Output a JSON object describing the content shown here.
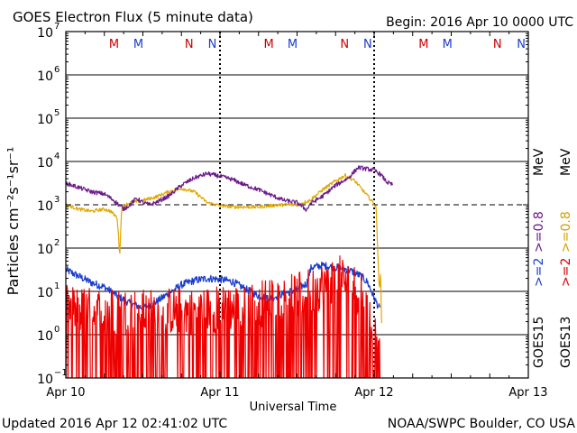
{
  "chart_data": {
    "type": "line",
    "title": "GOES Electron Flux (5 minute data)",
    "begin_label": "Begin: 2016 Apr 10 0000 UTC",
    "xlabel": "Universal Time",
    "ylabel": "Particles cm⁻²s⁻¹sr⁻¹",
    "updated": "Updated 2016 Apr 12 02:41:02 UTC",
    "credit": "NOAA/SWPC Boulder, CO USA",
    "xlim_hours": [
      0,
      72
    ],
    "ylim_log10": [
      -1,
      7
    ],
    "grid": true,
    "x_ticks": [
      {
        "hour": 0,
        "label": "Apr 10"
      },
      {
        "hour": 24,
        "label": "Apr 11"
      },
      {
        "hour": 48,
        "label": "Apr 12"
      },
      {
        "hour": 72,
        "label": "Apr 13"
      }
    ],
    "y_ticks": [
      {
        "exp": -1,
        "label": "10",
        "sup": "−1"
      },
      {
        "exp": 0,
        "label": "10",
        "sup": "0"
      },
      {
        "exp": 1,
        "label": "10",
        "sup": "1"
      },
      {
        "exp": 2,
        "label": "10",
        "sup": "2"
      },
      {
        "exp": 3,
        "label": "10",
        "sup": "3"
      },
      {
        "exp": 4,
        "label": "10",
        "sup": "4"
      },
      {
        "exp": 5,
        "label": "10",
        "sup": "5"
      },
      {
        "exp": 6,
        "label": "10",
        "sup": "6"
      },
      {
        "exp": 7,
        "label": "10",
        "sup": "7"
      }
    ],
    "alert_threshold_exp": 3,
    "midnight_hours": [
      24,
      48
    ],
    "mn_markers": [
      {
        "label": "M",
        "hour": 7.5,
        "color": "#cc0000"
      },
      {
        "label": "M",
        "hour": 11.3,
        "color": "#1a3ccc"
      },
      {
        "label": "N",
        "hour": 19.2,
        "color": "#cc0000"
      },
      {
        "label": "N",
        "hour": 22.8,
        "color": "#1a3ccc"
      },
      {
        "label": "M",
        "hour": 31.6,
        "color": "#cc0000"
      },
      {
        "label": "M",
        "hour": 35.3,
        "color": "#1a3ccc"
      },
      {
        "label": "N",
        "hour": 43.4,
        "color": "#cc0000"
      },
      {
        "label": "N",
        "hour": 47.0,
        "color": "#1a3ccc"
      },
      {
        "label": "M",
        "hour": 55.7,
        "color": "#cc0000"
      },
      {
        "label": "M",
        "hour": 59.4,
        "color": "#1a3ccc"
      },
      {
        "label": "N",
        "hour": 67.2,
        "color": "#cc0000"
      },
      {
        "label": "N",
        "hour": 70.9,
        "color": "#1a3ccc"
      }
    ],
    "legend": {
      "energy_08": [
        {
          "text": ">=0.8",
          "color": "#d4a000"
        },
        {
          "text": ">=0.8",
          "color": "#6a1a8a"
        }
      ],
      "energy_08_unit": "MeV",
      "energy_2": [
        {
          "text": ">=2",
          "color": "#dd0000"
        },
        {
          "text": ">=2",
          "color": "#1a3ccc"
        }
      ],
      "satellites": [
        "GOES13",
        "GOES15"
      ]
    },
    "series": [
      {
        "name": "GOES15 >=0.8 MeV",
        "color": "#6a1a8a",
        "noise": 0.05,
        "points": [
          [
            0,
            3.5
          ],
          [
            2,
            3.4
          ],
          [
            4,
            3.3
          ],
          [
            6,
            3.25
          ],
          [
            7.5,
            3.1
          ],
          [
            9,
            2.9
          ],
          [
            10,
            3.0
          ],
          [
            11,
            3.15
          ],
          [
            12,
            3.05
          ],
          [
            13,
            3.0
          ],
          [
            14,
            3.05
          ],
          [
            16,
            3.2
          ],
          [
            18,
            3.45
          ],
          [
            20,
            3.62
          ],
          [
            22,
            3.72
          ],
          [
            24,
            3.66
          ],
          [
            26,
            3.58
          ],
          [
            28,
            3.45
          ],
          [
            30,
            3.35
          ],
          [
            32,
            3.22
          ],
          [
            34,
            3.1
          ],
          [
            36,
            3.05
          ],
          [
            37.5,
            2.88
          ],
          [
            38,
            3.02
          ],
          [
            40,
            3.2
          ],
          [
            42,
            3.45
          ],
          [
            44,
            3.62
          ],
          [
            45.5,
            3.86
          ],
          [
            48,
            3.8
          ],
          [
            49,
            3.7
          ],
          [
            50,
            3.52
          ],
          [
            51,
            3.45
          ]
        ]
      },
      {
        "name": "GOES13 >=0.8 MeV",
        "color": "#e0a800",
        "noise": 0.04,
        "points": [
          [
            0,
            3.0
          ],
          [
            2,
            2.9
          ],
          [
            4,
            2.85
          ],
          [
            6,
            2.9
          ],
          [
            7,
            2.85
          ],
          [
            8,
            2.7
          ],
          [
            8.4,
            1.85
          ],
          [
            8.7,
            2.95
          ],
          [
            10,
            3.05
          ],
          [
            12,
            3.1
          ],
          [
            14,
            3.18
          ],
          [
            16,
            3.3
          ],
          [
            18,
            3.38
          ],
          [
            20,
            3.3
          ],
          [
            21,
            3.18
          ],
          [
            22,
            3.05
          ],
          [
            24,
            2.98
          ],
          [
            26,
            2.95
          ],
          [
            28,
            2.95
          ],
          [
            30,
            2.95
          ],
          [
            32,
            2.98
          ],
          [
            34,
            3.0
          ],
          [
            36,
            3.0
          ],
          [
            38,
            3.1
          ],
          [
            40,
            3.35
          ],
          [
            42,
            3.55
          ],
          [
            43.5,
            3.68
          ],
          [
            45,
            3.55
          ],
          [
            47,
            3.2
          ],
          [
            48,
            3.02
          ],
          [
            48.3,
            2.95
          ],
          [
            48.6,
            1.8
          ],
          [
            48.8,
            1.0
          ],
          [
            49.0,
            1.4
          ],
          [
            49.2,
            0.0
          ]
        ]
      },
      {
        "name": "GOES13 >=2 MeV",
        "color": "#ee0000",
        "noise": 0.55,
        "spiky": true,
        "points": [
          [
            0,
            0.6
          ],
          [
            4,
            0.55
          ],
          [
            8,
            0.55
          ],
          [
            12,
            0.5
          ],
          [
            16,
            0.55
          ],
          [
            20,
            0.55
          ],
          [
            24,
            0.6
          ],
          [
            28,
            0.6
          ],
          [
            32,
            0.8
          ],
          [
            35,
            0.85
          ],
          [
            38,
            1.0
          ],
          [
            40,
            1.15
          ],
          [
            42,
            1.3
          ],
          [
            44,
            1.25
          ],
          [
            46,
            0.9
          ],
          [
            47,
            0.45
          ],
          [
            48,
            0.1
          ],
          [
            49,
            0.05
          ]
        ]
      },
      {
        "name": "GOES15 >=2 MeV",
        "color": "#1a3ccc",
        "noise": 0.09,
        "points": [
          [
            0,
            1.5
          ],
          [
            2,
            1.35
          ],
          [
            4,
            1.2
          ],
          [
            6,
            1.1
          ],
          [
            8,
            0.9
          ],
          [
            10,
            0.72
          ],
          [
            12,
            0.62
          ],
          [
            14,
            0.75
          ],
          [
            16,
            0.95
          ],
          [
            18,
            1.15
          ],
          [
            20,
            1.25
          ],
          [
            22,
            1.3
          ],
          [
            24,
            1.28
          ],
          [
            26,
            1.22
          ],
          [
            28,
            1.05
          ],
          [
            30,
            0.9
          ],
          [
            32,
            0.85
          ],
          [
            34,
            0.95
          ],
          [
            36,
            1.05
          ],
          [
            37.5,
            1.18
          ],
          [
            38.2,
            1.55
          ],
          [
            40,
            1.6
          ],
          [
            42,
            1.55
          ],
          [
            44,
            1.5
          ],
          [
            46,
            1.35
          ],
          [
            47,
            1.2
          ],
          [
            48,
            0.85
          ],
          [
            49,
            0.55
          ]
        ]
      }
    ]
  }
}
